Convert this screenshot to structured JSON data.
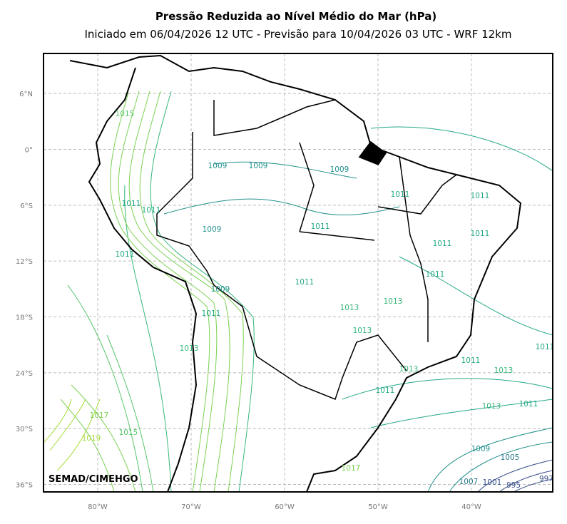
{
  "header": {
    "title": "Pressão Reduzida ao Nível Médio do Mar (hPa)",
    "subtitle": "Iniciado em 06/04/2026 12 UTC - Previsão para 10/04/2026 03 UTC - WRF 12km"
  },
  "map": {
    "xlim": [
      -85.8,
      -31.3
    ],
    "ylim": [
      -36.8,
      10.3
    ],
    "xticks": [
      {
        "value": -80,
        "label": "80°W"
      },
      {
        "value": -70,
        "label": "70°W"
      },
      {
        "value": -60,
        "label": "60°W"
      },
      {
        "value": -50,
        "label": "50°W"
      },
      {
        "value": -40,
        "label": "40°W"
      }
    ],
    "yticks": [
      {
        "value": 6,
        "label": "6°N"
      },
      {
        "value": 0,
        "label": "0°"
      },
      {
        "value": -6,
        "label": "6°S"
      },
      {
        "value": -12,
        "label": "12°S"
      },
      {
        "value": -18,
        "label": "18°S"
      },
      {
        "value": -24,
        "label": "24°S"
      },
      {
        "value": -30,
        "label": "30°S"
      },
      {
        "value": -36,
        "label": "36°S"
      }
    ],
    "grid": true,
    "contour_labels": [
      1015,
      1009,
      1009,
      1009,
      1011,
      1011,
      1011,
      1011,
      1009,
      1011,
      1011,
      1011,
      1011,
      1011,
      1011,
      1009,
      1013,
      1013,
      1011,
      1013,
      1013,
      1011,
      1011,
      1013,
      1013,
      1011,
      1013,
      1011,
      1017,
      1015,
      1019,
      1009,
      1005,
      1017,
      1007,
      1001,
      997,
      995
    ],
    "credit": "SEMAD/CIMEHGO"
  }
}
